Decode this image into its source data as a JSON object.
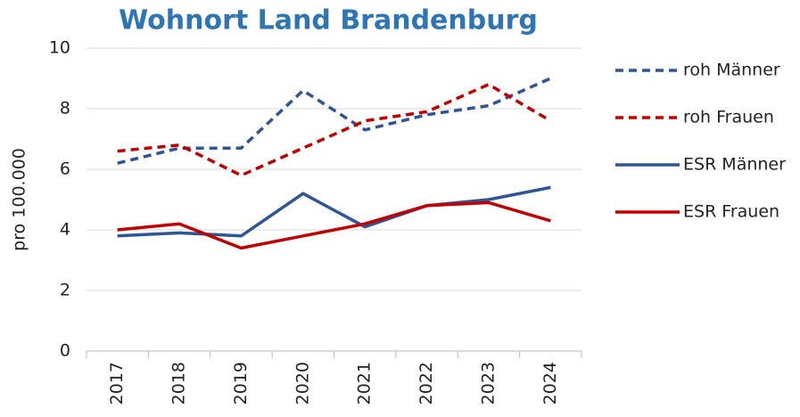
{
  "chart_data": {
    "type": "line",
    "title": "Wohnort Land Brandenburg",
    "y_label": "pro 100.000",
    "categories": [
      "2017",
      "2018",
      "2019",
      "2020",
      "2021",
      "2022",
      "2023",
      "2024"
    ],
    "series": [
      {
        "name": "roh Männer",
        "color": "#2f5597",
        "style": "dashed",
        "values": [
          6.2,
          6.7,
          6.7,
          8.6,
          7.3,
          7.8,
          8.1,
          9.0
        ]
      },
      {
        "name": "roh Frauen",
        "color": "#c00000",
        "style": "dashed",
        "values": [
          6.6,
          6.8,
          5.8,
          6.7,
          7.6,
          7.9,
          8.8,
          7.6
        ]
      },
      {
        "name": "ESR Männer",
        "color": "#2f5597",
        "style": "solid",
        "values": [
          3.8,
          3.9,
          3.8,
          5.2,
          4.1,
          4.8,
          5.0,
          5.4
        ]
      },
      {
        "name": "ESR Frauen",
        "color": "#c00000",
        "style": "solid",
        "values": [
          4.0,
          4.2,
          3.4,
          3.8,
          4.2,
          4.8,
          4.9,
          4.3
        ]
      }
    ],
    "ylim": [
      0,
      10
    ],
    "yticks": [
      0,
      2,
      4,
      6,
      8,
      10
    ],
    "grid": true,
    "legend": "right"
  }
}
